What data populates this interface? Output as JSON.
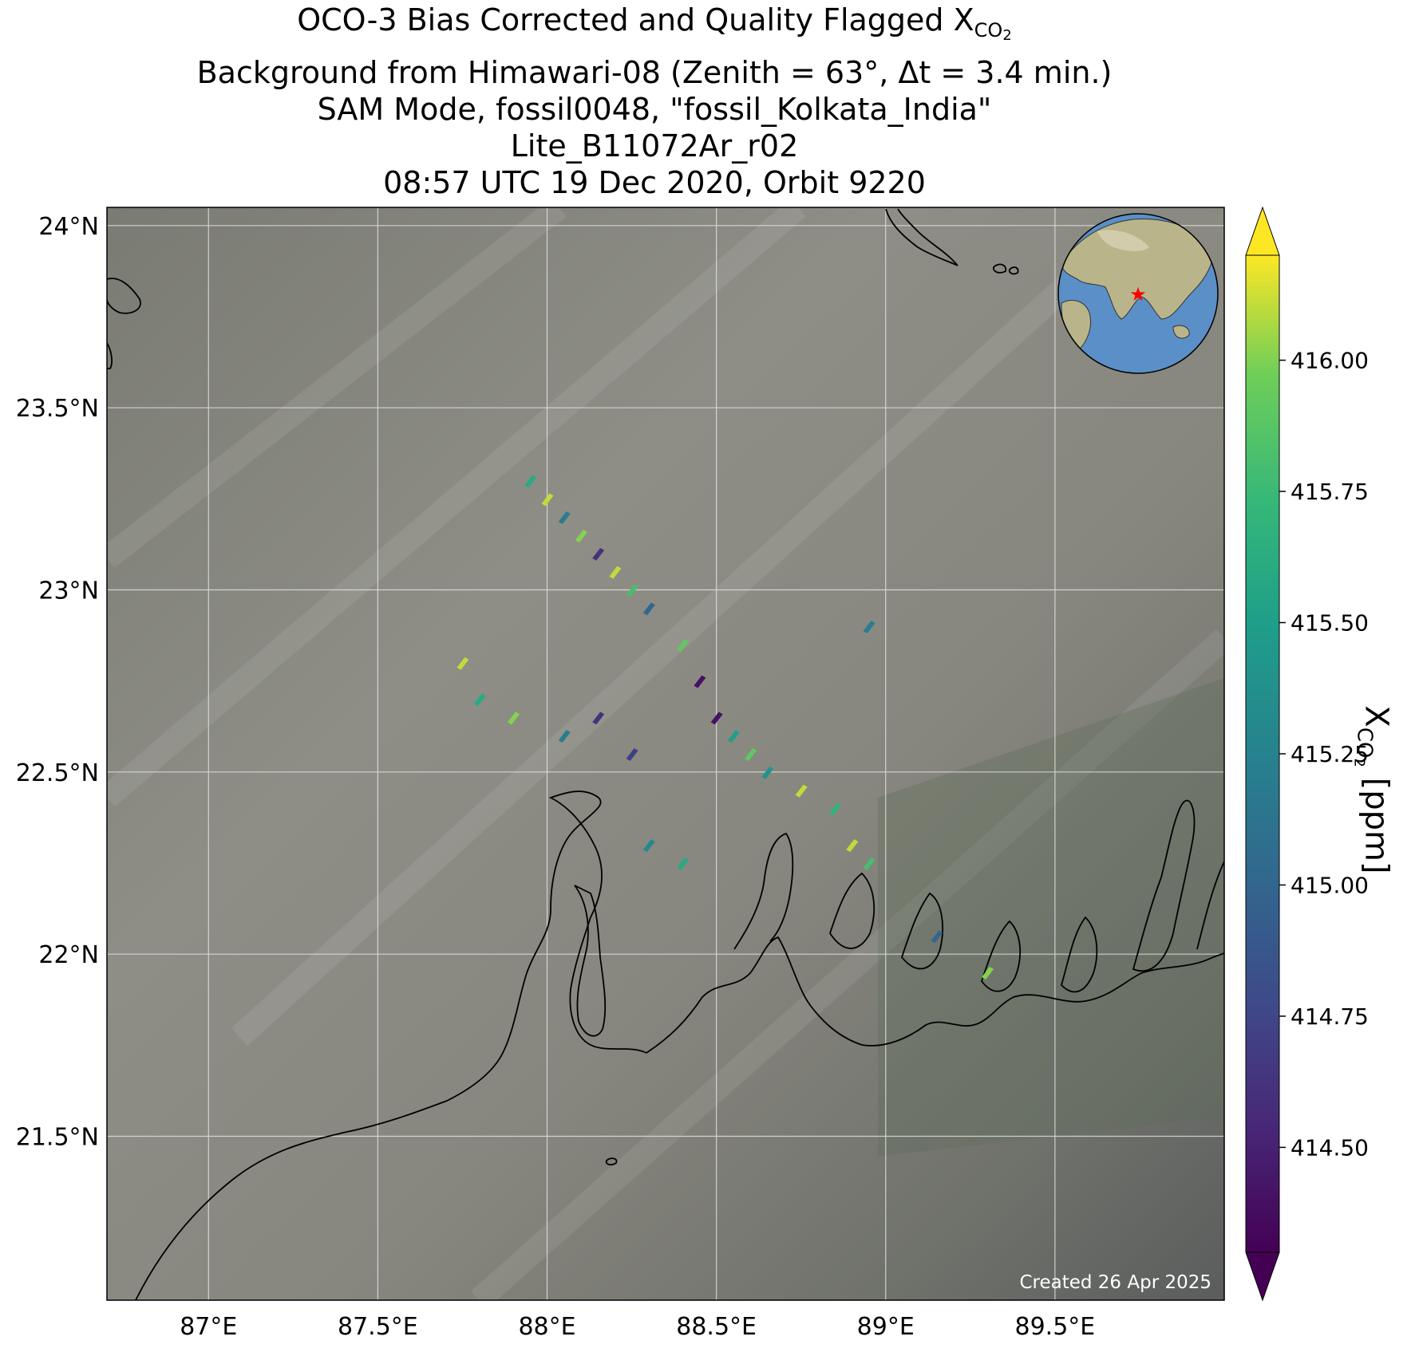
{
  "title": {
    "line1": "OCO-3 Bias Corrected and Quality Flagged X",
    "line1_sub": "CO",
    "line1_sub2": "2",
    "line2": "Background from Himawari-08 (Zenith = 63°, Δt =  3.4 min.)",
    "line3": "SAM Mode, fossil0048, \"fossil_Kolkata_India\"",
    "line4": "Lite_B11072Ar_r02",
    "line5": "08:57 UTC 19 Dec 2020, Orbit 9220"
  },
  "map": {
    "lon_ticks": [
      "87°E",
      "87.5°E",
      "88°E",
      "88.5°E",
      "89°E",
      "89.5°E"
    ],
    "lat_ticks": [
      "24°N",
      "23.5°N",
      "23°N",
      "22.5°N",
      "22°N",
      "21.5°N"
    ],
    "lon_values": [
      87.0,
      87.5,
      88.0,
      88.5,
      89.0,
      89.5
    ],
    "lat_values": [
      24.0,
      23.5,
      23.0,
      22.5,
      22.0,
      21.5
    ],
    "created_text": "Created 26 Apr 2025",
    "target_marker_color": "#ff0000",
    "ocean_color": "#5b8fc7",
    "land_color": "#b9b48a"
  },
  "colorbar": {
    "label_main": "X",
    "label_sub": "CO",
    "label_sub2": "2",
    "label_unit": " [ppm]",
    "colormap": "viridis",
    "vmin": 414.3,
    "vmax": 416.2,
    "ticks": [
      "416.00",
      "415.75",
      "415.50",
      "415.25",
      "415.00",
      "414.75",
      "414.50"
    ],
    "tick_values": [
      416.0,
      415.75,
      415.5,
      415.25,
      415.0,
      414.75,
      414.5
    ],
    "extend": "both"
  },
  "chart_data": {
    "type": "scatter",
    "xlabel": "",
    "ylabel": "",
    "xlim": [
      86.7,
      90.0
    ],
    "ylim": [
      21.05,
      24.05
    ],
    "colorbar_range": [
      414.3,
      416.2
    ],
    "series": [
      {
        "points": [
          {
            "lon": 87.95,
            "lat": 23.3,
            "xco2": 415.6
          },
          {
            "lon": 88.0,
            "lat": 23.25,
            "xco2": 416.1
          },
          {
            "lon": 88.05,
            "lat": 23.2,
            "xco2": 415.2
          },
          {
            "lon": 88.1,
            "lat": 23.15,
            "xco2": 416.0
          },
          {
            "lon": 88.15,
            "lat": 23.1,
            "xco2": 414.6
          },
          {
            "lon": 88.2,
            "lat": 23.05,
            "xco2": 416.1
          },
          {
            "lon": 88.25,
            "lat": 23.0,
            "xco2": 415.8
          },
          {
            "lon": 88.3,
            "lat": 22.95,
            "xco2": 415.0
          },
          {
            "lon": 88.4,
            "lat": 22.85,
            "xco2": 415.9
          },
          {
            "lon": 88.45,
            "lat": 22.75,
            "xco2": 414.4
          },
          {
            "lon": 88.5,
            "lat": 22.65,
            "xco2": 414.4
          },
          {
            "lon": 88.55,
            "lat": 22.6,
            "xco2": 415.5
          },
          {
            "lon": 88.6,
            "lat": 22.55,
            "xco2": 415.9
          },
          {
            "lon": 88.65,
            "lat": 22.5,
            "xco2": 415.4
          },
          {
            "lon": 88.75,
            "lat": 22.45,
            "xco2": 416.1
          },
          {
            "lon": 88.85,
            "lat": 22.4,
            "xco2": 415.7
          },
          {
            "lon": 88.9,
            "lat": 22.3,
            "xco2": 416.1
          },
          {
            "lon": 88.95,
            "lat": 22.25,
            "xco2": 415.8
          },
          {
            "lon": 87.75,
            "lat": 22.8,
            "xco2": 416.1
          },
          {
            "lon": 87.8,
            "lat": 22.7,
            "xco2": 415.6
          },
          {
            "lon": 87.9,
            "lat": 22.65,
            "xco2": 416.0
          },
          {
            "lon": 88.05,
            "lat": 22.6,
            "xco2": 415.2
          },
          {
            "lon": 88.15,
            "lat": 22.65,
            "xco2": 414.6
          },
          {
            "lon": 88.25,
            "lat": 22.55,
            "xco2": 414.7
          },
          {
            "lon": 88.3,
            "lat": 22.3,
            "xco2": 415.3
          },
          {
            "lon": 88.4,
            "lat": 22.25,
            "xco2": 415.6
          },
          {
            "lon": 88.95,
            "lat": 22.9,
            "xco2": 415.2
          },
          {
            "lon": 89.15,
            "lat": 22.05,
            "xco2": 415.0
          },
          {
            "lon": 89.3,
            "lat": 21.95,
            "xco2": 416.0
          }
        ]
      }
    ]
  }
}
